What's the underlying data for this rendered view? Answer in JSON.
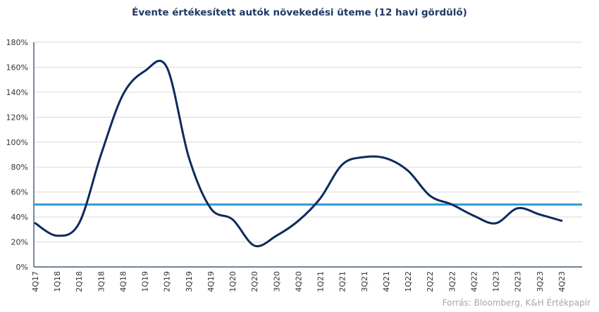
{
  "chart_data": {
    "type": "line",
    "title": "Évente értékesített autók növekedési üteme (12 havi gördülő)",
    "xlabel": "",
    "ylabel": "",
    "ylim": [
      0,
      180
    ],
    "yticks": [
      0,
      20,
      40,
      60,
      80,
      100,
      120,
      140,
      160,
      180
    ],
    "ytick_labels": [
      "0%",
      "20%",
      "40%",
      "60%",
      "80%",
      "100%",
      "120%",
      "140%",
      "160%",
      "180%"
    ],
    "categories": [
      "4Q17",
      "1Q18",
      "2Q18",
      "3Q18",
      "4Q18",
      "1Q19",
      "2Q19",
      "3Q19",
      "4Q19",
      "1Q20",
      "2Q20",
      "3Q20",
      "4Q20",
      "1Q21",
      "2Q21",
      "3Q21",
      "4Q21",
      "1Q22",
      "2Q22",
      "3Q22",
      "4Q22",
      "1Q23",
      "2Q23",
      "3Q23",
      "4Q23"
    ],
    "grid": true,
    "series": [
      {
        "color": "#0d2a5e",
        "values": [
          35,
          25,
          35,
          90,
          138,
          157,
          160,
          88,
          47,
          38,
          17,
          25,
          37,
          55,
          82,
          88,
          87,
          77,
          57,
          50,
          41,
          35,
          47,
          42,
          37
        ]
      }
    ],
    "reference_line": {
      "value": 50,
      "color": "#2e9bd6"
    },
    "source": "Forrás: Bloomberg, K&H Értékpapír"
  }
}
